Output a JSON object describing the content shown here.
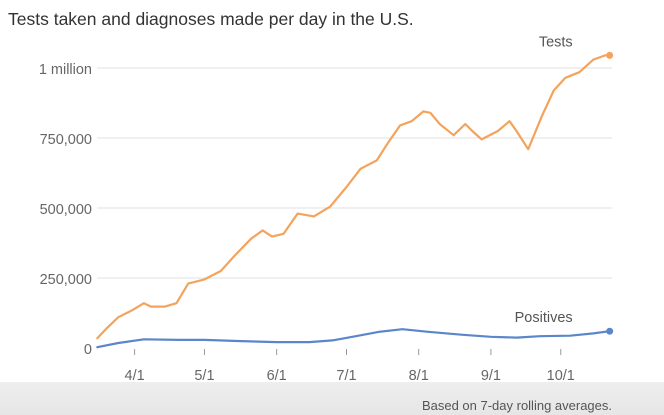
{
  "chart_data": {
    "type": "line",
    "title": "Tests taken and diagnoses made per day in the U.S.",
    "footnote": "Based on 7-day rolling averages.",
    "x_tick_labels": [
      "4/1",
      "5/1",
      "6/1",
      "7/1",
      "8/1",
      "9/1",
      "10/1"
    ],
    "y_tick_labels": [
      "0",
      "250,000",
      "500,000",
      "750,000",
      "1 million"
    ],
    "y_tick_values": [
      0,
      250000,
      500000,
      750000,
      1000000
    ],
    "ylim": [
      0,
      1000000
    ],
    "xlim": [
      "2020-03-15",
      "2020-10-23"
    ],
    "grid": true,
    "series": [
      {
        "name": "Tests",
        "color": "#f4a35c",
        "points": [
          [
            "2020-03-16",
            35000
          ],
          [
            "2020-03-20",
            70000
          ],
          [
            "2020-03-25",
            110000
          ],
          [
            "2020-03-31",
            135000
          ],
          [
            "2020-04-05",
            160000
          ],
          [
            "2020-04-08",
            148000
          ],
          [
            "2020-04-14",
            148000
          ],
          [
            "2020-04-19",
            160000
          ],
          [
            "2020-04-24",
            230000
          ],
          [
            "2020-05-01",
            245000
          ],
          [
            "2020-05-08",
            275000
          ],
          [
            "2020-05-14",
            330000
          ],
          [
            "2020-05-21",
            390000
          ],
          [
            "2020-05-26",
            420000
          ],
          [
            "2020-05-30",
            398000
          ],
          [
            "2020-06-04",
            408000
          ],
          [
            "2020-06-10",
            480000
          ],
          [
            "2020-06-17",
            470000
          ],
          [
            "2020-06-24",
            505000
          ],
          [
            "2020-07-01",
            575000
          ],
          [
            "2020-07-07",
            640000
          ],
          [
            "2020-07-14",
            670000
          ],
          [
            "2020-07-19",
            735000
          ],
          [
            "2020-07-24",
            795000
          ],
          [
            "2020-07-29",
            810000
          ],
          [
            "2020-08-03",
            845000
          ],
          [
            "2020-08-06",
            840000
          ],
          [
            "2020-08-10",
            800000
          ],
          [
            "2020-08-16",
            760000
          ],
          [
            "2020-08-21",
            800000
          ],
          [
            "2020-08-24",
            775000
          ],
          [
            "2020-08-28",
            745000
          ],
          [
            "2020-09-04",
            775000
          ],
          [
            "2020-09-09",
            810000
          ],
          [
            "2020-09-12",
            775000
          ],
          [
            "2020-09-17",
            710000
          ],
          [
            "2020-09-23",
            830000
          ],
          [
            "2020-09-28",
            920000
          ],
          [
            "2020-10-03",
            965000
          ],
          [
            "2020-10-09",
            985000
          ],
          [
            "2020-10-15",
            1030000
          ],
          [
            "2020-10-20",
            1045000
          ],
          [
            "2020-10-22",
            1045000
          ]
        ]
      },
      {
        "name": "Positives",
        "color": "#5b86cb",
        "points": [
          [
            "2020-03-16",
            3000
          ],
          [
            "2020-03-25",
            18000
          ],
          [
            "2020-04-05",
            31000
          ],
          [
            "2020-04-20",
            29000
          ],
          [
            "2020-05-01",
            29000
          ],
          [
            "2020-05-15",
            25000
          ],
          [
            "2020-06-01",
            21000
          ],
          [
            "2020-06-15",
            21000
          ],
          [
            "2020-06-25",
            27000
          ],
          [
            "2020-07-05",
            42000
          ],
          [
            "2020-07-15",
            58000
          ],
          [
            "2020-07-25",
            67000
          ],
          [
            "2020-08-05",
            58000
          ],
          [
            "2020-08-20",
            47000
          ],
          [
            "2020-09-01",
            40000
          ],
          [
            "2020-09-12",
            37000
          ],
          [
            "2020-09-22",
            42000
          ],
          [
            "2020-10-05",
            44000
          ],
          [
            "2020-10-15",
            52000
          ],
          [
            "2020-10-22",
            60000
          ]
        ]
      }
    ]
  }
}
